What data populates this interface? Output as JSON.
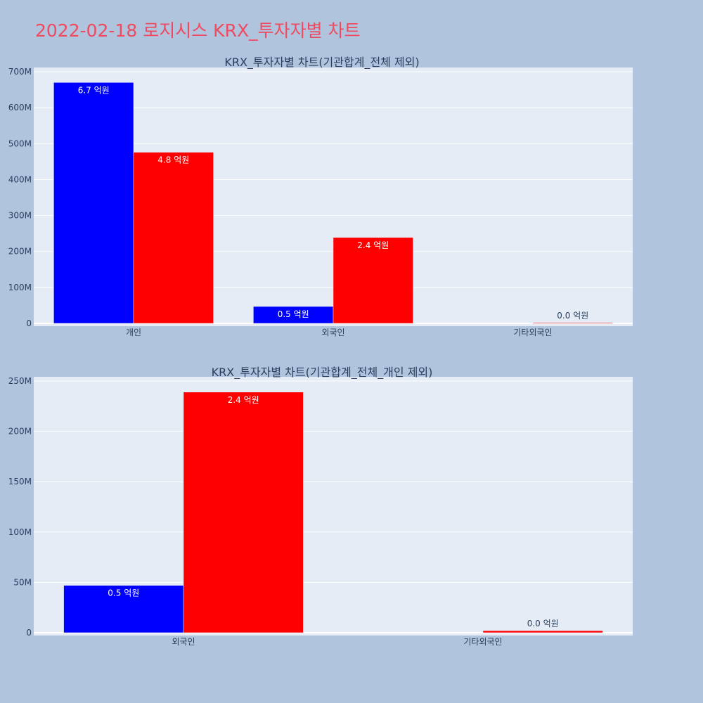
{
  "page": {
    "title": "2022-02-18 로지시스 KRX_투자자별 차트",
    "background": "#b0c4de",
    "title_color": "#ef4a60"
  },
  "colors": {
    "plot_bg": "#e5ecf6",
    "grid": "#ffffff",
    "axis_text": "#2a3f5f",
    "series_blue": "#0000ff",
    "series_red": "#ff0000"
  },
  "chart_data": [
    {
      "type": "bar",
      "title": "KRX_투자자별 차트(기관합계_전체 제외)",
      "categories": [
        "개인",
        "외국인",
        "기타외국인"
      ],
      "series": [
        {
          "color": "#0000ff",
          "values": [
            670000000,
            47000000,
            0
          ],
          "labels": [
            "6.7 억원",
            "0.5 억원",
            ""
          ]
        },
        {
          "color": "#ff0000",
          "values": [
            476000000,
            239000000,
            2000000
          ],
          "labels": [
            "4.8 억원",
            "2.4 억원",
            "0.0 억원"
          ]
        }
      ],
      "ylim": [
        0,
        700000000
      ],
      "yticks": [
        0,
        100000000,
        200000000,
        300000000,
        400000000,
        500000000,
        600000000,
        700000000
      ],
      "ytick_labels": [
        "0",
        "100M",
        "200M",
        "300M",
        "400M",
        "500M",
        "600M",
        "700M"
      ],
      "grid": true,
      "xlabel": "",
      "ylabel": ""
    },
    {
      "type": "bar",
      "title": "KRX_투자자별 차트(기관합계_전체_개인 제외)",
      "categories": [
        "외국인",
        "기타외국인"
      ],
      "series": [
        {
          "color": "#0000ff",
          "values": [
            47000000,
            0
          ],
          "labels": [
            "0.5 억원",
            ""
          ]
        },
        {
          "color": "#ff0000",
          "values": [
            239000000,
            2000000
          ],
          "labels": [
            "2.4 억원",
            "0.0 억원"
          ]
        }
      ],
      "ylim": [
        0,
        250000000
      ],
      "yticks": [
        0,
        50000000,
        100000000,
        150000000,
        200000000,
        250000000
      ],
      "ytick_labels": [
        "0",
        "50M",
        "100M",
        "150M",
        "200M",
        "250M"
      ],
      "grid": true,
      "xlabel": "",
      "ylabel": ""
    }
  ]
}
